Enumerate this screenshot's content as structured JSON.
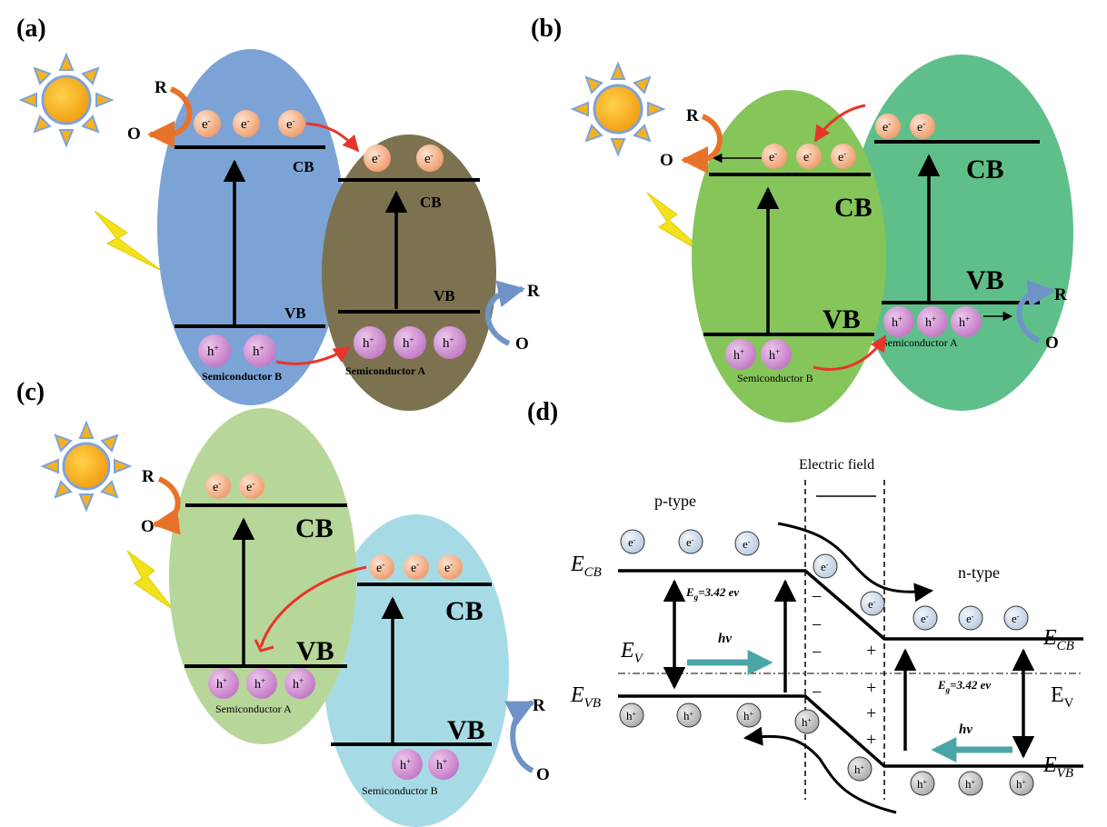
{
  "panels": {
    "a": {
      "label": "(a)",
      "cb_left": "CB",
      "vb_left": "VB",
      "cb_right": "CB",
      "vb_right": "VB",
      "semi_left": "Semiconductor B",
      "semi_right": "Semiconductor A",
      "redox_top_r": "R",
      "redox_top_o": "O",
      "redox_bot_r": "R",
      "redox_bot_o": "O"
    },
    "b": {
      "label": "(b)",
      "cb_left": "CB",
      "vb_left": "VB",
      "cb_right": "CB",
      "vb_right": "VB",
      "semi_left": "Semiconductor B",
      "semi_right": "Semiconductor A",
      "redox_top_r": "R",
      "redox_top_o": "O",
      "redox_bot_r": "R",
      "redox_bot_o": "O"
    },
    "c": {
      "label": "(c)",
      "cb_left": "CB",
      "vb_left": "VB",
      "cb_right": "CB",
      "vb_right": "VB",
      "semi_left": "Semiconductor A",
      "semi_right": "Semiconductor B",
      "redox_top_r": "R",
      "redox_top_o": "O",
      "redox_bot_r": "R",
      "redox_bot_o": "O"
    },
    "d": {
      "label": "(d)",
      "electric_field": "Electric field",
      "p_type": "p-type",
      "n_type": "n-type",
      "ecb_left": "E",
      "ecb_left_sub": "CB",
      "evb_left": "E",
      "evb_left_sub": "VB",
      "ev_left": "E",
      "ev_left_sub": "V",
      "ecb_right": "E",
      "ecb_right_sub": "CB",
      "evb_right": "E",
      "evb_right_sub": "VB",
      "ev_right": "E",
      "ev_right_sub": "V",
      "eg_left": "=3.42 ev",
      "eg_right": "=3.42 ev",
      "eg_sym": "E",
      "eg_sub": "g",
      "hv_left": "hv",
      "hv_right": "hv",
      "minus": "−",
      "plus": "+"
    }
  },
  "particles": {
    "electron": "e",
    "electron_sup": "-",
    "hole": "h",
    "hole_sup": "+"
  },
  "colors": {
    "a_left": "#7ba3d6",
    "a_right": "#7d7250",
    "b_left": "#86c55a",
    "b_right": "#5fbf8a",
    "c_left": "#b7d79a",
    "c_right": "#a6dbe6",
    "electron": "#f3b58e",
    "hole": "#cf8fd0",
    "red_arrow": "#e8352a",
    "redox_orange": "#e9722b",
    "redox_blue": "#6f93c6",
    "teal": "#4aa6a6",
    "sun": "#f6b21d",
    "bolt": "#f1e21b"
  },
  "icons": [
    "sun-icon",
    "lightning-icon"
  ]
}
